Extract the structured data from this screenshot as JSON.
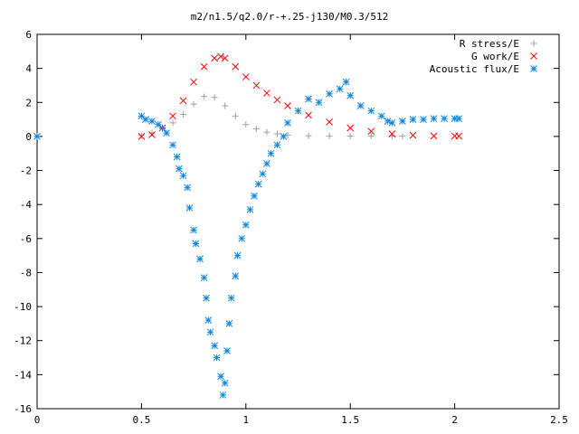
{
  "chart_data": {
    "type": "scatter",
    "title": "m2/n1.5/q2.0/r-+.25-j130/M0.3/512",
    "xlabel": "",
    "ylabel": "",
    "xlim": [
      0,
      2.5
    ],
    "ylim": [
      -16,
      6
    ],
    "x_ticks": [
      "0",
      "0.5",
      "1",
      "1.5",
      "2",
      "2.5"
    ],
    "x_tick_values": [
      0,
      0.5,
      1,
      1.5,
      2,
      2.5
    ],
    "y_ticks": [
      "6",
      "4",
      "2",
      "0",
      "-2",
      "-4",
      "-6",
      "-8",
      "-10",
      "-12",
      "-14",
      "-16"
    ],
    "y_tick_values": [
      6,
      4,
      2,
      0,
      -2,
      -4,
      -6,
      -8,
      -10,
      -12,
      -14,
      -16
    ],
    "grid": false,
    "legend_position": "top-right",
    "series": [
      {
        "name": "R stress/E",
        "marker": "plus",
        "color": "#a0a0a0",
        "x": [
          0.0,
          0.5,
          0.55,
          0.6,
          0.65,
          0.7,
          0.75,
          0.8,
          0.85,
          0.9,
          0.95,
          1.0,
          1.05,
          1.1,
          1.15,
          1.2,
          1.3,
          1.4,
          1.5,
          1.6,
          1.7,
          1.75
        ],
        "y": [
          0.0,
          0.05,
          0.2,
          0.45,
          0.8,
          1.3,
          1.9,
          2.35,
          2.3,
          1.8,
          1.2,
          0.7,
          0.45,
          0.25,
          0.15,
          0.08,
          0.04,
          0.03,
          0.02,
          0.02,
          0.02,
          0.02
        ]
      },
      {
        "name": "G work/E",
        "marker": "cross",
        "color": "#ff0000",
        "x": [
          0.5,
          0.55,
          0.6,
          0.65,
          0.7,
          0.75,
          0.8,
          0.85,
          0.88,
          0.9,
          0.95,
          1.0,
          1.05,
          1.1,
          1.15,
          1.2,
          1.3,
          1.4,
          1.5,
          1.6,
          1.7,
          1.8,
          1.9,
          2.0,
          2.02
        ],
        "y": [
          0.0,
          0.1,
          0.5,
          1.2,
          2.1,
          3.2,
          4.1,
          4.6,
          4.7,
          4.6,
          4.1,
          3.5,
          3.0,
          2.55,
          2.15,
          1.8,
          1.25,
          0.85,
          0.5,
          0.3,
          0.15,
          0.07,
          0.03,
          0.02,
          0.02
        ]
      },
      {
        "name": "Acoustic flux/E",
        "marker": "star",
        "color": "#0a84e0",
        "x": [
          0.0,
          0.5,
          0.52,
          0.55,
          0.58,
          0.6,
          0.62,
          0.65,
          0.67,
          0.68,
          0.7,
          0.72,
          0.73,
          0.75,
          0.76,
          0.78,
          0.8,
          0.81,
          0.82,
          0.83,
          0.85,
          0.86,
          0.88,
          0.89,
          0.9,
          0.91,
          0.92,
          0.93,
          0.95,
          0.96,
          0.98,
          1.0,
          1.02,
          1.04,
          1.06,
          1.08,
          1.1,
          1.12,
          1.15,
          1.18,
          1.2,
          1.25,
          1.3,
          1.35,
          1.4,
          1.45,
          1.48,
          1.5,
          1.55,
          1.6,
          1.65,
          1.68,
          1.7,
          1.75,
          1.8,
          1.85,
          1.9,
          1.95,
          2.0,
          2.02
        ],
        "y": [
          0.0,
          1.2,
          1.0,
          0.9,
          0.7,
          0.5,
          0.2,
          -0.5,
          -1.2,
          -1.9,
          -2.3,
          -3.0,
          -4.2,
          -5.5,
          -6.3,
          -7.2,
          -8.3,
          -9.5,
          -10.8,
          -11.5,
          -12.3,
          -13.0,
          -14.1,
          -15.2,
          -14.5,
          -12.6,
          -11.0,
          -9.5,
          -8.2,
          -7.0,
          -6.0,
          -5.2,
          -4.3,
          -3.5,
          -2.8,
          -2.2,
          -1.6,
          -1.0,
          -0.5,
          0.0,
          0.8,
          1.5,
          2.2,
          2.0,
          2.5,
          2.8,
          3.2,
          2.4,
          1.8,
          1.5,
          1.2,
          0.9,
          0.8,
          0.9,
          1.0,
          1.0,
          1.05,
          1.05,
          1.05,
          1.05
        ]
      }
    ]
  }
}
